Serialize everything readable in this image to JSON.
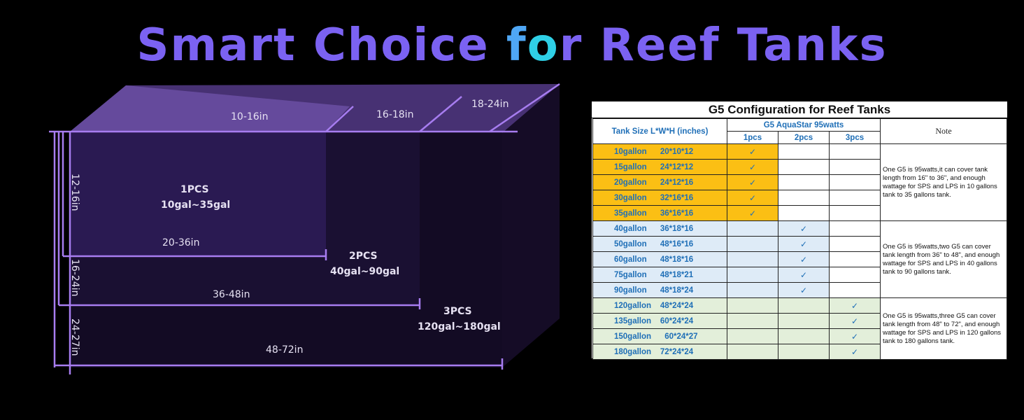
{
  "title": {
    "part1": "Smart Choice ",
    "part2": "f",
    "part3": "o",
    "part4": "r Reef Tanks"
  },
  "diagram": {
    "top_dims": [
      "10-16in",
      "16-18in",
      "18-24in"
    ],
    "height_dims": [
      "12-16in",
      "16-24in",
      "24-27in"
    ],
    "length_dims": [
      "20-36in",
      "36-48in",
      "48-72in"
    ],
    "tiers": [
      {
        "pcs": "1PCS",
        "range": "10gal~35gal"
      },
      {
        "pcs": "2PCS",
        "range": "40gal~90gal"
      },
      {
        "pcs": "3PCS",
        "range": "120gal~180gal"
      }
    ],
    "colors": {
      "line": "#a77df0",
      "front": "#1a0f33",
      "top": "#4a3377"
    }
  },
  "table": {
    "title": "G5 Configuration for Reef Tanks",
    "col_tank_size": "Tank Size L*W*H (inches)",
    "col_group": "G5 AquaStar 95watts",
    "col_1pcs": "1pcs",
    "col_2pcs": "2pcs",
    "col_3pcs": "3pcs",
    "col_note": "Note",
    "rows": [
      {
        "size": "10gallon      20*10*12",
        "mark": "✓"
      },
      {
        "size": "15gallon      24*12*12",
        "mark": "✓"
      },
      {
        "size": "20gallon      24*12*16",
        "mark": "✓"
      },
      {
        "size": "30gallon      32*16*16",
        "mark": "✓"
      },
      {
        "size": "35gallon      36*16*16",
        "mark": "✓"
      },
      {
        "size": "40gallon      36*18*16",
        "mark": "✓"
      },
      {
        "size": "50gallon      48*16*16",
        "mark": "✓"
      },
      {
        "size": "60gallon      48*18*16",
        "mark": "✓"
      },
      {
        "size": "75gallon      48*18*21",
        "mark": "✓"
      },
      {
        "size": "90gallon      48*18*24",
        "mark": "✓"
      },
      {
        "size": "120gallon    48*24*24",
        "mark": "✓"
      },
      {
        "size": "135gallon    60*24*24",
        "mark": "✓"
      },
      {
        "size": "150gallon      60*24*27",
        "mark": "✓"
      },
      {
        "size": "180gallon    72*24*24",
        "mark": "✓"
      }
    ],
    "notes": [
      "One G5 is 95watts,it can cover tank length from 16\" to 36\", and enough wattage for SPS and LPS in 10 gallons tank to 35 gallons tank.",
      "One G5 is 95watts,two G5 can cover tank length from 36\" to 48\", and enough wattage for SPS and LPS in 40 gallons tank to 90 gallons tank.",
      "One G5 is 95watts,three G5 can cover tank length from 48\" to 72\", and enough wattage for SPS and LPS in 120 gallons tank to 180 gallons tank."
    ],
    "colors": {
      "group1": "#fbbf14",
      "group2": "#deebf7",
      "group3": "#e3efda",
      "text": "#1f6fb7"
    }
  }
}
